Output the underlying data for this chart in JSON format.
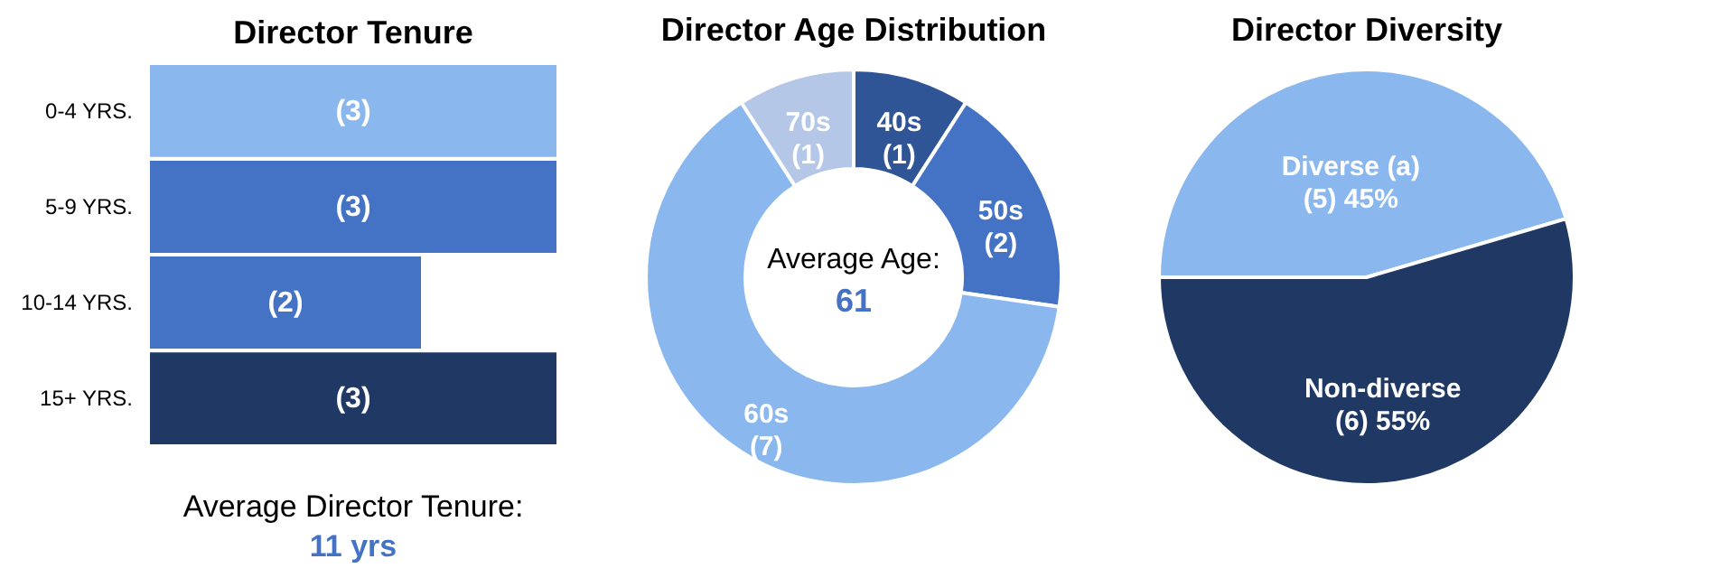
{
  "chart_data": [
    {
      "type": "bar",
      "orientation": "horizontal",
      "title": "Director Tenure",
      "categories": [
        "0-4 YRS.",
        "5-9 YRS.",
        "10-14 YRS.",
        "15+ YRS."
      ],
      "values": [
        3,
        3,
        2,
        3
      ],
      "value_labels": [
        "(3)",
        "(3)",
        "(2)",
        "(3)"
      ],
      "colors": [
        "#8ab8ee",
        "#4472c4",
        "#4472c4",
        "#1f3864"
      ],
      "annotations": [
        "Average Director Tenure:",
        "11 yrs"
      ]
    },
    {
      "type": "donut",
      "title": "Director Age Distribution",
      "categories": [
        "40s",
        "50s",
        "60s",
        "70s"
      ],
      "values": [
        1,
        2,
        7,
        1
      ],
      "value_labels": [
        "(1)",
        "(2)",
        "(7)",
        "(1)"
      ],
      "colors": [
        "#2f5597",
        "#4472c4",
        "#8ab8ee",
        "#b4c7e7"
      ],
      "annotations": [
        "Average Age:",
        "61"
      ]
    },
    {
      "type": "pie",
      "title": "Director Diversity",
      "categories": [
        "Diverse (a)",
        "Non-diverse"
      ],
      "values": [
        5,
        6
      ],
      "value_labels": [
        "(5) 45%",
        "(6) 55%"
      ],
      "colors": [
        "#8ab8ee",
        "#1f3864"
      ]
    }
  ]
}
